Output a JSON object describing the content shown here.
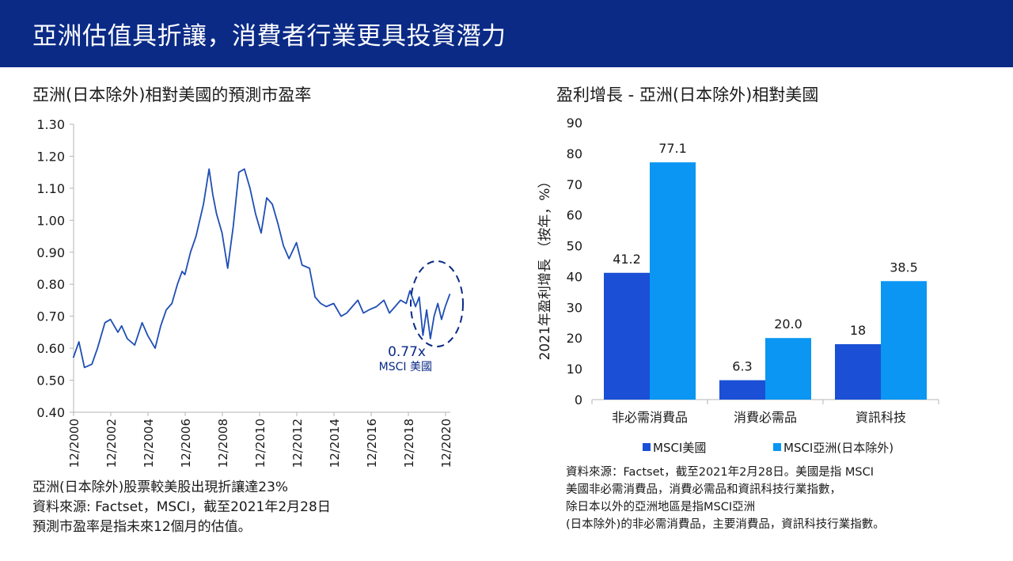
{
  "header": {
    "title": "亞洲估值具折讓，消費者行業更具投資潛力",
    "background_color": "#0a2a86"
  },
  "left_panel": {
    "notes": [
      "亞洲(日本除外)股票較美股出現折讓達23%",
      "資料來源: Factset，MSCI，截至2021年2月28日",
      "預測市盈率是指未來12個月的估值。"
    ]
  },
  "right_panel": {
    "notes": [
      "資料來源：Factset，截至2021年2月28日。美國是指 MSCI",
      "美國非必需消費品，消費必需品和資訊科技行業指數，",
      "除日本以外的亞洲地區是指MSCI亞洲",
      "(日本除外)的非必需消費品，主要消費品，資訊科技行業指數。"
    ]
  },
  "chart_data": [
    {
      "type": "line",
      "title": "亞洲(日本除外)相對美國的預測市盈率",
      "xlabel": "",
      "ylabel": "",
      "ylim": [
        0.4,
        1.3
      ],
      "y_ticks": [
        "0.40",
        "0.50",
        "0.60",
        "0.70",
        "0.80",
        "0.90",
        "1.00",
        "1.10",
        "1.20",
        "1.30"
      ],
      "x_ticks": [
        "12/2000",
        "12/2002",
        "12/2004",
        "12/2006",
        "12/2008",
        "12/2010",
        "12/2012",
        "12/2014",
        "12/2016",
        "12/2018",
        "12/2020"
      ],
      "color": "#1f4eb4",
      "annotation": {
        "value_label": "0.77x",
        "label": "MSCI 美國",
        "color": "#0a2a86"
      },
      "series": [
        {
          "x": [
            2000.9,
            2001.2,
            2001.5,
            2001.9,
            2002.2,
            2002.6,
            2002.9,
            2003.3,
            2003.5,
            2003.8,
            2004.2,
            2004.6,
            2004.9,
            2005.3,
            2005.6,
            2005.9,
            2006.2,
            2006.5,
            2006.75,
            2006.9,
            2007.2,
            2007.5,
            2007.9,
            2008.2,
            2008.4,
            2008.6,
            2008.9,
            2009.2,
            2009.5,
            2009.8,
            2010.1,
            2010.4,
            2010.7,
            2011.0,
            2011.3,
            2011.6,
            2011.9,
            2012.2,
            2012.5,
            2012.9,
            2013.2,
            2013.6,
            2013.9,
            2014.2,
            2014.5,
            2014.9,
            2015.3,
            2015.6,
            2015.9,
            2016.2,
            2016.5,
            2016.8,
            2017.2,
            2017.6,
            2017.9,
            2018.2,
            2018.5,
            2018.8,
            2019.0,
            2019.3,
            2019.5,
            2019.7,
            2019.9,
            2020.1,
            2020.3,
            2020.5,
            2020.7,
            2020.9,
            2021.15
          ],
          "y": [
            0.57,
            0.62,
            0.54,
            0.55,
            0.6,
            0.68,
            0.69,
            0.65,
            0.67,
            0.63,
            0.61,
            0.68,
            0.64,
            0.6,
            0.67,
            0.72,
            0.74,
            0.8,
            0.84,
            0.83,
            0.9,
            0.95,
            1.05,
            1.16,
            1.08,
            1.02,
            0.96,
            0.85,
            0.98,
            1.15,
            1.16,
            1.1,
            1.02,
            0.96,
            1.07,
            1.05,
            0.99,
            0.92,
            0.88,
            0.93,
            0.86,
            0.85,
            0.76,
            0.74,
            0.73,
            0.74,
            0.7,
            0.71,
            0.73,
            0.75,
            0.71,
            0.72,
            0.73,
            0.75,
            0.71,
            0.73,
            0.75,
            0.74,
            0.78,
            0.73,
            0.76,
            0.64,
            0.72,
            0.63,
            0.7,
            0.74,
            0.69,
            0.73,
            0.77
          ]
        }
      ]
    },
    {
      "type": "bar",
      "title": "盈利增長 - 亞洲(日本除外)相對美國",
      "xlabel": "",
      "ylabel": "2021年盈利增長 （按年，%）",
      "ylim": [
        0,
        90
      ],
      "y_ticks": [
        "0",
        "10",
        "20",
        "30",
        "40",
        "50",
        "60",
        "70",
        "80",
        "90"
      ],
      "categories": [
        "非必需消費品",
        "消費必需品",
        "資訊科技"
      ],
      "legend_position": "bottom",
      "series": [
        {
          "name": "MSCI美國",
          "values": [
            41.2,
            6.3,
            18
          ],
          "labels": [
            "41.2",
            "6.3",
            "18"
          ],
          "color": "#1a4fd6"
        },
        {
          "name": "MSCI亞洲(日本除外)",
          "values": [
            77.1,
            20.0,
            38.5
          ],
          "labels": [
            "77.1",
            "20.0",
            "38.5"
          ],
          "color": "#0a96f2"
        }
      ]
    }
  ]
}
